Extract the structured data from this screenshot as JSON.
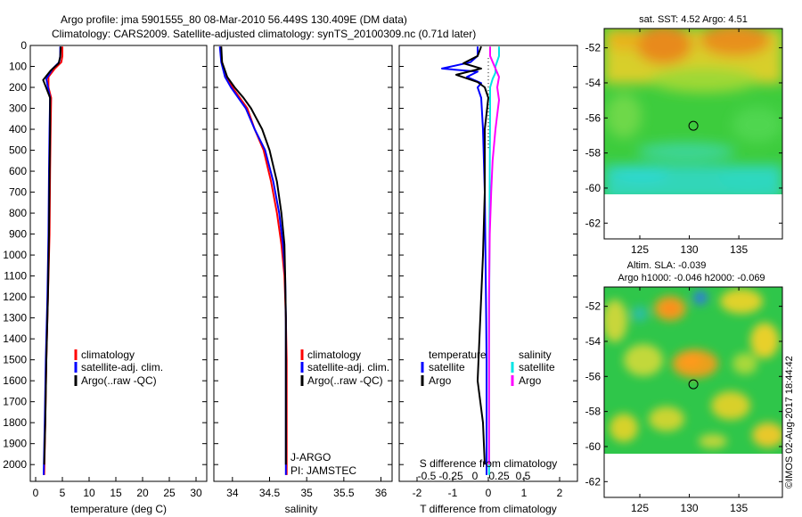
{
  "titles": {
    "line1": "Argo profile: jma 5901555_80 08-Mar-2010 56.449S 130.409E (DM data)",
    "line2": "Climatology: CARS2009. Satellite-adjusted climatology: synTS_20100309.nc (0.71d later)"
  },
  "colors": {
    "climatology": "#ff0000",
    "satellite_adj": "#0000ff",
    "argo": "#000000",
    "sal_satellite": "#00e5e5",
    "sal_argo": "#ff00ff",
    "dotted": "#000000"
  },
  "legends": {
    "temp": [
      "climatology",
      "satellite-adj. clim.",
      "Argo(..raw -QC)"
    ],
    "sal": [
      "climatology",
      "satellite-adj. clim.",
      "Argo(..raw -QC)"
    ],
    "diff_temp_head": "temperature",
    "diff_sal_head": "salinity",
    "diff_temp": [
      "satellite",
      "Argo"
    ],
    "diff_sal": [
      "satellite",
      "Argo"
    ],
    "agency": "J-ARGO",
    "pi": "PI: JAMSTEC"
  },
  "maps": {
    "sst_title": "sat. SST: 4.52  Argo: 4.51",
    "sla_title1": "Altim. SLA: -0.039",
    "sla_title2": "Argo h1000: -0.046 h2000: -0.069",
    "lat_ticks": [
      "-52",
      "-54",
      "-56",
      "-58",
      "-60",
      "-62"
    ],
    "lon_ticks": [
      "125",
      "130",
      "135"
    ],
    "float_position": {
      "lon": 130.409,
      "lat": -56.449
    }
  },
  "watermark": "©IMOS 02-Aug-2017 18:44:42",
  "chart_data": [
    {
      "type": "line",
      "id": "temperature",
      "xlabel": "temperature (deg C)",
      "ylabel": "",
      "xlim": [
        -1,
        32
      ],
      "ylim": [
        2080,
        0
      ],
      "xticks": [
        0,
        5,
        10,
        15,
        20,
        25,
        30
      ],
      "yticks": [
        0,
        100,
        200,
        300,
        400,
        500,
        600,
        700,
        800,
        900,
        1000,
        1100,
        1200,
        1300,
        1400,
        1500,
        1600,
        1700,
        1800,
        1900,
        2000
      ],
      "series": [
        {
          "name": "climatology",
          "color": "#ff0000",
          "points": [
            [
              5.0,
              5
            ],
            [
              5.0,
              50
            ],
            [
              4.8,
              80
            ],
            [
              3.6,
              110
            ],
            [
              2.4,
              150
            ],
            [
              2.4,
              200
            ],
            [
              2.9,
              250
            ],
            [
              2.8,
              400
            ],
            [
              2.7,
              600
            ],
            [
              2.6,
              900
            ],
            [
              2.3,
              1200
            ],
            [
              2.0,
              1500
            ],
            [
              1.8,
              1800
            ],
            [
              1.6,
              2050
            ]
          ]
        },
        {
          "name": "satellite-adj. clim.",
          "color": "#0000ff",
          "points": [
            [
              4.6,
              5
            ],
            [
              4.6,
              50
            ],
            [
              4.4,
              80
            ],
            [
              3.2,
              110
            ],
            [
              2.0,
              160
            ],
            [
              2.3,
              200
            ],
            [
              2.7,
              250
            ],
            [
              2.6,
              400
            ],
            [
              2.5,
              600
            ],
            [
              2.4,
              900
            ],
            [
              2.2,
              1200
            ],
            [
              1.9,
              1500
            ],
            [
              1.7,
              1800
            ],
            [
              1.5,
              2050
            ]
          ]
        },
        {
          "name": "Argo(..raw -QC)",
          "color": "#000000",
          "points": [
            [
              4.7,
              5
            ],
            [
              4.6,
              55
            ],
            [
              4.3,
              85
            ],
            [
              2.8,
              120
            ],
            [
              1.4,
              165
            ],
            [
              1.8,
              190
            ],
            [
              2.7,
              250
            ],
            [
              2.7,
              400
            ],
            [
              2.6,
              600
            ],
            [
              2.5,
              900
            ],
            [
              2.3,
              1200
            ],
            [
              2.0,
              1500
            ],
            [
              1.8,
              1800
            ],
            [
              1.6,
              2000
            ]
          ]
        }
      ]
    },
    {
      "type": "line",
      "id": "salinity",
      "xlabel": "salinity",
      "xlim": [
        33.75,
        36.15
      ],
      "ylim": [
        2080,
        0
      ],
      "xticks": [
        34,
        34.5,
        35,
        35.5,
        36
      ],
      "xticklabels": [
        "34",
        "34.5",
        "35",
        "35.5",
        "36"
      ],
      "series": [
        {
          "name": "climatology",
          "color": "#ff0000",
          "points": [
            [
              33.84,
              5
            ],
            [
              33.86,
              80
            ],
            [
              33.92,
              150
            ],
            [
              34.0,
              200
            ],
            [
              34.1,
              250
            ],
            [
              34.2,
              300
            ],
            [
              34.3,
              400
            ],
            [
              34.42,
              500
            ],
            [
              34.52,
              650
            ],
            [
              34.6,
              800
            ],
            [
              34.66,
              950
            ],
            [
              34.7,
              1100
            ],
            [
              34.72,
              1300
            ],
            [
              34.73,
              1500
            ],
            [
              34.73,
              2050
            ]
          ]
        },
        {
          "name": "satellite-adj. clim.",
          "color": "#0000ff",
          "points": [
            [
              33.83,
              5
            ],
            [
              33.85,
              80
            ],
            [
              33.9,
              150
            ],
            [
              33.98,
              200
            ],
            [
              34.08,
              250
            ],
            [
              34.18,
              300
            ],
            [
              34.3,
              400
            ],
            [
              34.44,
              500
            ],
            [
              34.55,
              650
            ],
            [
              34.63,
              800
            ],
            [
              34.68,
              950
            ],
            [
              34.71,
              1100
            ],
            [
              34.72,
              1300
            ],
            [
              34.72,
              1500
            ],
            [
              34.72,
              2050
            ]
          ]
        },
        {
          "name": "Argo(..raw -QC)",
          "color": "#000000",
          "points": [
            [
              33.85,
              5
            ],
            [
              33.86,
              80
            ],
            [
              33.93,
              150
            ],
            [
              34.03,
              200
            ],
            [
              34.15,
              250
            ],
            [
              34.25,
              300
            ],
            [
              34.4,
              400
            ],
            [
              34.5,
              500
            ],
            [
              34.6,
              650
            ],
            [
              34.66,
              800
            ],
            [
              34.7,
              950
            ],
            [
              34.71,
              1100
            ],
            [
              34.72,
              1300
            ],
            [
              34.72,
              1500
            ],
            [
              34.72,
              2000
            ]
          ]
        }
      ]
    },
    {
      "type": "line",
      "id": "difference",
      "xlabel": "T difference from climatology",
      "xlabel_top": "S difference from climatology",
      "xlim": [
        -2.5,
        2.5
      ],
      "ylim": [
        2080,
        0
      ],
      "xticks": [
        -2,
        -1,
        0,
        1,
        2
      ],
      "xticklabels": [
        "-2",
        "-1",
        "0",
        "1",
        "2"
      ],
      "s_ticks": [
        -0.5,
        -0.25,
        0,
        0.25,
        0.5
      ],
      "s_ticklabels": [
        "-0.5",
        "-0.25",
        "0",
        "0.25",
        "0.5"
      ],
      "series": [
        {
          "name": "T satellite",
          "color": "#0000ff",
          "points": [
            [
              -0.3,
              5
            ],
            [
              -0.3,
              50
            ],
            [
              -0.5,
              80
            ],
            [
              -1.3,
              110
            ],
            [
              -0.3,
              125
            ],
            [
              -0.6,
              150
            ],
            [
              -0.2,
              180
            ],
            [
              -0.3,
              200
            ],
            [
              -0.2,
              250
            ],
            [
              -0.15,
              400
            ],
            [
              -0.1,
              700
            ],
            [
              -0.08,
              1000
            ],
            [
              -0.06,
              1300
            ],
            [
              -0.05,
              1500
            ],
            [
              -0.05,
              2050
            ]
          ]
        },
        {
          "name": "T Argo",
          "color": "#000000",
          "points": [
            [
              -0.2,
              5
            ],
            [
              -0.3,
              50
            ],
            [
              -0.7,
              85
            ],
            [
              -0.2,
              110
            ],
            [
              -0.9,
              140
            ],
            [
              -0.3,
              175
            ],
            [
              -0.1,
              200
            ],
            [
              0.0,
              250
            ],
            [
              -0.1,
              400
            ],
            [
              -0.1,
              700
            ],
            [
              -0.15,
              1000
            ],
            [
              -0.2,
              1200
            ],
            [
              -0.25,
              1400
            ],
            [
              -0.3,
              1600
            ],
            [
              -0.15,
              1800
            ],
            [
              -0.1,
              2000
            ]
          ]
        },
        {
          "name": "S satellite",
          "color": "#00e5e5",
          "points": [
            [
              0.3,
              5
            ],
            [
              0.3,
              50
            ],
            [
              0.2,
              100
            ],
            [
              0.2,
              130
            ],
            [
              0.12,
              160
            ],
            [
              0.05,
              200
            ],
            [
              0.05,
              300
            ],
            [
              0.04,
              600
            ],
            [
              0.03,
              1000
            ],
            [
              0.02,
              1500
            ],
            [
              0.02,
              2050
            ]
          ]
        },
        {
          "name": "S Argo",
          "color": "#ff00ff",
          "points": [
            [
              0.05,
              5
            ],
            [
              0.05,
              50
            ],
            [
              0.15,
              90
            ],
            [
              0.3,
              150
            ],
            [
              0.25,
              200
            ],
            [
              0.3,
              260
            ],
            [
              0.2,
              400
            ],
            [
              0.12,
              550
            ],
            [
              0.08,
              700
            ],
            [
              0.04,
              900
            ],
            [
              0.02,
              1200
            ],
            [
              0.02,
              1600
            ],
            [
              0.02,
              2000
            ]
          ]
        }
      ]
    }
  ]
}
